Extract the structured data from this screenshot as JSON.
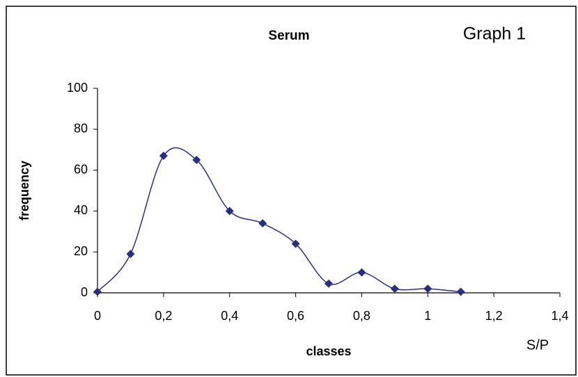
{
  "chart_data": {
    "type": "line",
    "title": "Serum",
    "annotation": "Graph 1",
    "x_label": "classes",
    "x_unit": "S/P",
    "y_label": "frequency",
    "x": [
      0,
      0.1,
      0.2,
      0.3,
      0.4,
      0.5,
      0.6,
      0.7,
      0.8,
      0.9,
      1,
      1.1
    ],
    "series": [
      {
        "color": "#2b2f7a",
        "values": [
          0.5,
          19,
          67,
          65,
          40,
          34,
          24,
          4.5,
          10,
          2,
          2,
          0.5
        ]
      }
    ],
    "xlim": [
      0,
      1.4
    ],
    "xticks": [
      0,
      {
        "value": 0.2,
        "label": "0,2"
      },
      {
        "value": 0.4,
        "label": "0,4"
      },
      {
        "value": 0.6,
        "label": "0,6"
      },
      {
        "value": 0.8,
        "label": "0,8"
      },
      1,
      {
        "value": 1.2,
        "label": "1,2"
      },
      {
        "value": 1.4,
        "label": "1,4"
      }
    ],
    "ylim": [
      0,
      100
    ],
    "yticks": [
      0,
      20,
      40,
      60,
      80,
      100
    ],
    "smooth": true,
    "marker": "diamond"
  }
}
